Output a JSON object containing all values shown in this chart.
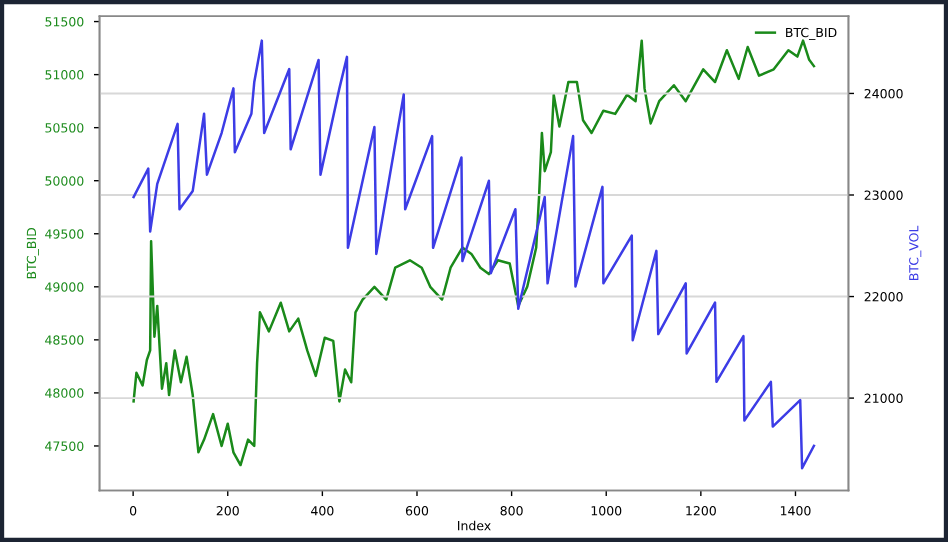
{
  "chart_data": {
    "type": "line",
    "xlabel": "Index",
    "ylabel": "BTC_BID",
    "y2label": "BTC_VOL",
    "xlim": [
      -71,
      1512
    ],
    "xticks": [
      0,
      200,
      400,
      600,
      800,
      1000,
      1200,
      1400
    ],
    "ylim": [
      47080,
      51550
    ],
    "yticks": [
      47500,
      48000,
      48500,
      49000,
      49500,
      50000,
      50500,
      51000,
      51500
    ],
    "y2lim": [
      20090,
      24760
    ],
    "y2ticks": [
      21000,
      22000,
      23000,
      24000
    ],
    "grid": "y2",
    "legend": "top right",
    "line_style": "solid",
    "marker": "none",
    "series": [
      {
        "name": "BTC_BID",
        "color": "#1a8a1a",
        "x": [
          1,
          7,
          20,
          29,
          36,
          38,
          45,
          51,
          61,
          70,
          76,
          88,
          101,
          113,
          126,
          138,
          150,
          169,
          187,
          200,
          212,
          227,
          243,
          256,
          262,
          268,
          287,
          312,
          330,
          349,
          368,
          386,
          405,
          423,
          436,
          448,
          461,
          470,
          485,
          510,
          535,
          554,
          585,
          610,
          628,
          653,
          671,
          696,
          715,
          734,
          752,
          771,
          796,
          814,
          833,
          852,
          858,
          864,
          870,
          883,
          889,
          901,
          920,
          938,
          951,
          969,
          994,
          1019,
          1044,
          1062,
          1075,
          1081,
          1094,
          1112,
          1143,
          1168,
          1205,
          1230,
          1255,
          1280,
          1299,
          1323,
          1354,
          1385,
          1404,
          1416,
          1429,
          1439
        ],
        "values": [
          47920,
          48190,
          48070,
          48310,
          48400,
          49430,
          48530,
          48820,
          48040,
          48280,
          47980,
          48400,
          48100,
          48340,
          47980,
          47440,
          47560,
          47800,
          47500,
          47710,
          47440,
          47320,
          47560,
          47500,
          48280,
          48760,
          48580,
          48850,
          48580,
          48700,
          48400,
          48160,
          48520,
          48490,
          47920,
          48220,
          48100,
          48760,
          48880,
          49000,
          48880,
          49180,
          49250,
          49180,
          49000,
          48880,
          49180,
          49370,
          49310,
          49180,
          49120,
          49250,
          49220,
          48820,
          49000,
          49370,
          49850,
          50450,
          50090,
          50270,
          50810,
          50510,
          50930,
          50930,
          50570,
          50450,
          50660,
          50630,
          50810,
          50750,
          51320,
          50870,
          50540,
          50750,
          50900,
          50750,
          51050,
          50930,
          51230,
          50960,
          51260,
          50990,
          51050,
          51230,
          51170,
          51320,
          51140,
          51080
        ]
      },
      {
        "color": "#3c3ce6",
        "axis": "y2",
        "x": [
          1,
          32,
          36,
          51,
          94,
          98,
          126,
          150,
          156,
          187,
          212,
          215,
          250,
          256,
          272,
          277,
          330,
          333,
          392,
          396,
          436,
          452,
          454,
          510,
          514,
          572,
          575,
          632,
          634,
          694,
          696,
          752,
          756,
          808,
          814,
          870,
          876,
          930,
          935,
          992,
          994,
          1054,
          1056,
          1106,
          1110,
          1168,
          1170,
          1230,
          1233,
          1290,
          1292,
          1348,
          1352,
          1410,
          1414,
          1439
        ],
        "values": [
          22980,
          23260,
          22640,
          23110,
          23700,
          22860,
          23040,
          23800,
          23200,
          23610,
          24050,
          23420,
          23800,
          24110,
          24520,
          23610,
          24240,
          23450,
          24330,
          23200,
          24050,
          24360,
          22480,
          23670,
          22420,
          23990,
          22860,
          23580,
          22480,
          23370,
          22350,
          23140,
          22230,
          22860,
          21880,
          22980,
          22130,
          23580,
          22100,
          23080,
          22130,
          22600,
          21570,
          22450,
          21630,
          22130,
          21440,
          21940,
          21160,
          21610,
          20780,
          21160,
          20720,
          20980,
          20310,
          20530
        ]
      }
    ]
  }
}
